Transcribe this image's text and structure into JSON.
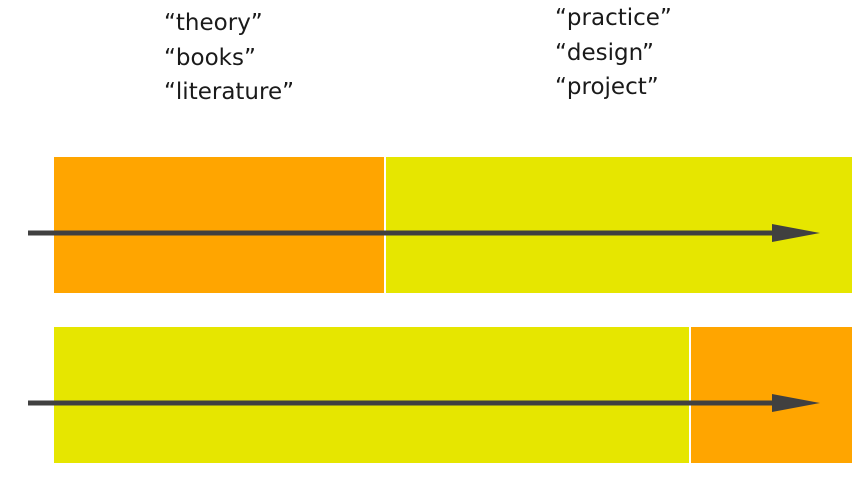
{
  "colors": {
    "theory_orange": "#FFA500",
    "practice_yellow": "#E6E600",
    "arrow": "#404040",
    "text": "#1a1a1a"
  },
  "labels": {
    "theory_side": [
      "“theory”",
      "“books”",
      "“literature”"
    ],
    "practice_side": [
      "“practice”",
      "“design”",
      "“project”"
    ]
  },
  "timelines": [
    {
      "segments": [
        {
          "kind": "theory",
          "share": 0.415
        },
        {
          "kind": "practice",
          "share": 0.585
        }
      ]
    },
    {
      "segments": [
        {
          "kind": "practice",
          "share": 0.798
        },
        {
          "kind": "theory",
          "share": 0.202
        }
      ]
    }
  ]
}
